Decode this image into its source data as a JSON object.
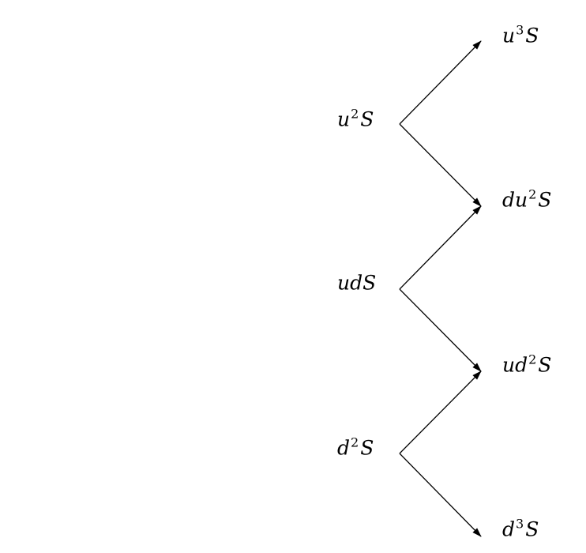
{
  "diagram": {
    "type": "binomial-tree",
    "nodes": {
      "left": [
        {
          "id": "u2s",
          "base": "u",
          "exp": "2",
          "tail": "S"
        },
        {
          "id": "uds",
          "base": "udS",
          "exp": "",
          "tail": ""
        },
        {
          "id": "d2s",
          "base": "d",
          "exp": "2",
          "tail": "S"
        }
      ],
      "right": [
        {
          "id": "u3s",
          "base": "u",
          "exp": "3",
          "tail": "S"
        },
        {
          "id": "du2s",
          "base": "du",
          "exp": "2",
          "tail": "S"
        },
        {
          "id": "ud2s",
          "base": "ud",
          "exp": "2",
          "tail": "S"
        },
        {
          "id": "d3s",
          "base": "d",
          "exp": "3",
          "tail": "S"
        }
      ]
    },
    "edges": [
      {
        "from": "u2s",
        "to": "u3s"
      },
      {
        "from": "u2s",
        "to": "du2s"
      },
      {
        "from": "uds",
        "to": "du2s"
      },
      {
        "from": "uds",
        "to": "ud2s"
      },
      {
        "from": "d2s",
        "to": "ud2s"
      },
      {
        "from": "d2s",
        "to": "d3s"
      }
    ],
    "colors": {
      "line": "#000000",
      "text": "#000000"
    }
  }
}
